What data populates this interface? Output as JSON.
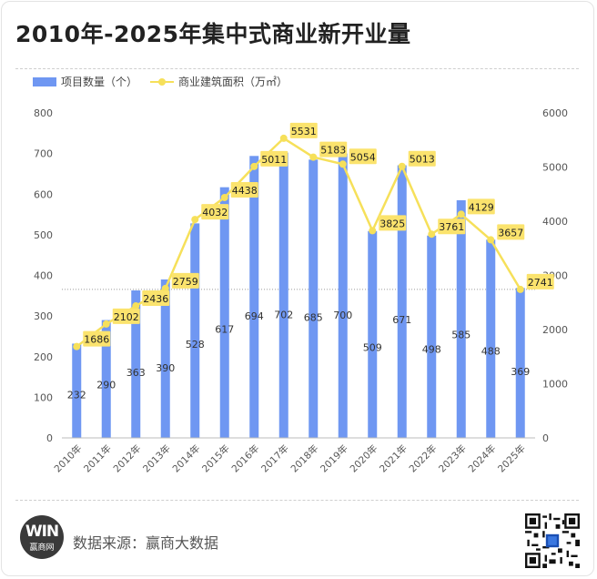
{
  "title": "2010年-2025年集中式商业新开业量",
  "legend": {
    "bar": "项目数量（个）",
    "line": "商业建筑面积（万㎡）"
  },
  "source": "数据来源：赢商大数据",
  "logo": {
    "mark": "WIN",
    "text": "赢商网"
  },
  "colors": {
    "bar": "#6f97f2",
    "line": "#f6e05a",
    "label_bg": "#fbe36d",
    "text": "#333333",
    "axis": "#555555"
  },
  "chart_data": {
    "type": "bar",
    "categories": [
      "2010年",
      "2011年",
      "2012年",
      "2013年",
      "2014年",
      "2015年",
      "2016年",
      "2017年",
      "2018年",
      "2019年",
      "2020年",
      "2021年",
      "2022年",
      "2023年",
      "2024年",
      "2025年"
    ],
    "series": [
      {
        "name": "项目数量（个）",
        "axis": "left",
        "type": "bar",
        "values": [
          232,
          290,
          363,
          390,
          528,
          617,
          694,
          702,
          685,
          700,
          509,
          671,
          498,
          585,
          488,
          369
        ]
      },
      {
        "name": "商业建筑面积（万㎡）",
        "axis": "right",
        "type": "line",
        "values": [
          1686,
          2102,
          2436,
          2759,
          4032,
          4438,
          5011,
          5531,
          5183,
          5054,
          3825,
          5013,
          3761,
          4129,
          3657,
          2741
        ]
      }
    ],
    "ylim": [
      0,
      800
    ],
    "yticks": [
      "0",
      "100",
      "200",
      "300",
      "400",
      "500",
      "600",
      "700",
      "800"
    ],
    "y2lim": [
      0,
      6000
    ],
    "y2ticks": [
      "0",
      "1000",
      "2000",
      "3000",
      "4000",
      "5000",
      "6000"
    ],
    "reference_line": {
      "axis": "right",
      "value": 2741
    },
    "grid": false,
    "legend_position": "top-left"
  }
}
